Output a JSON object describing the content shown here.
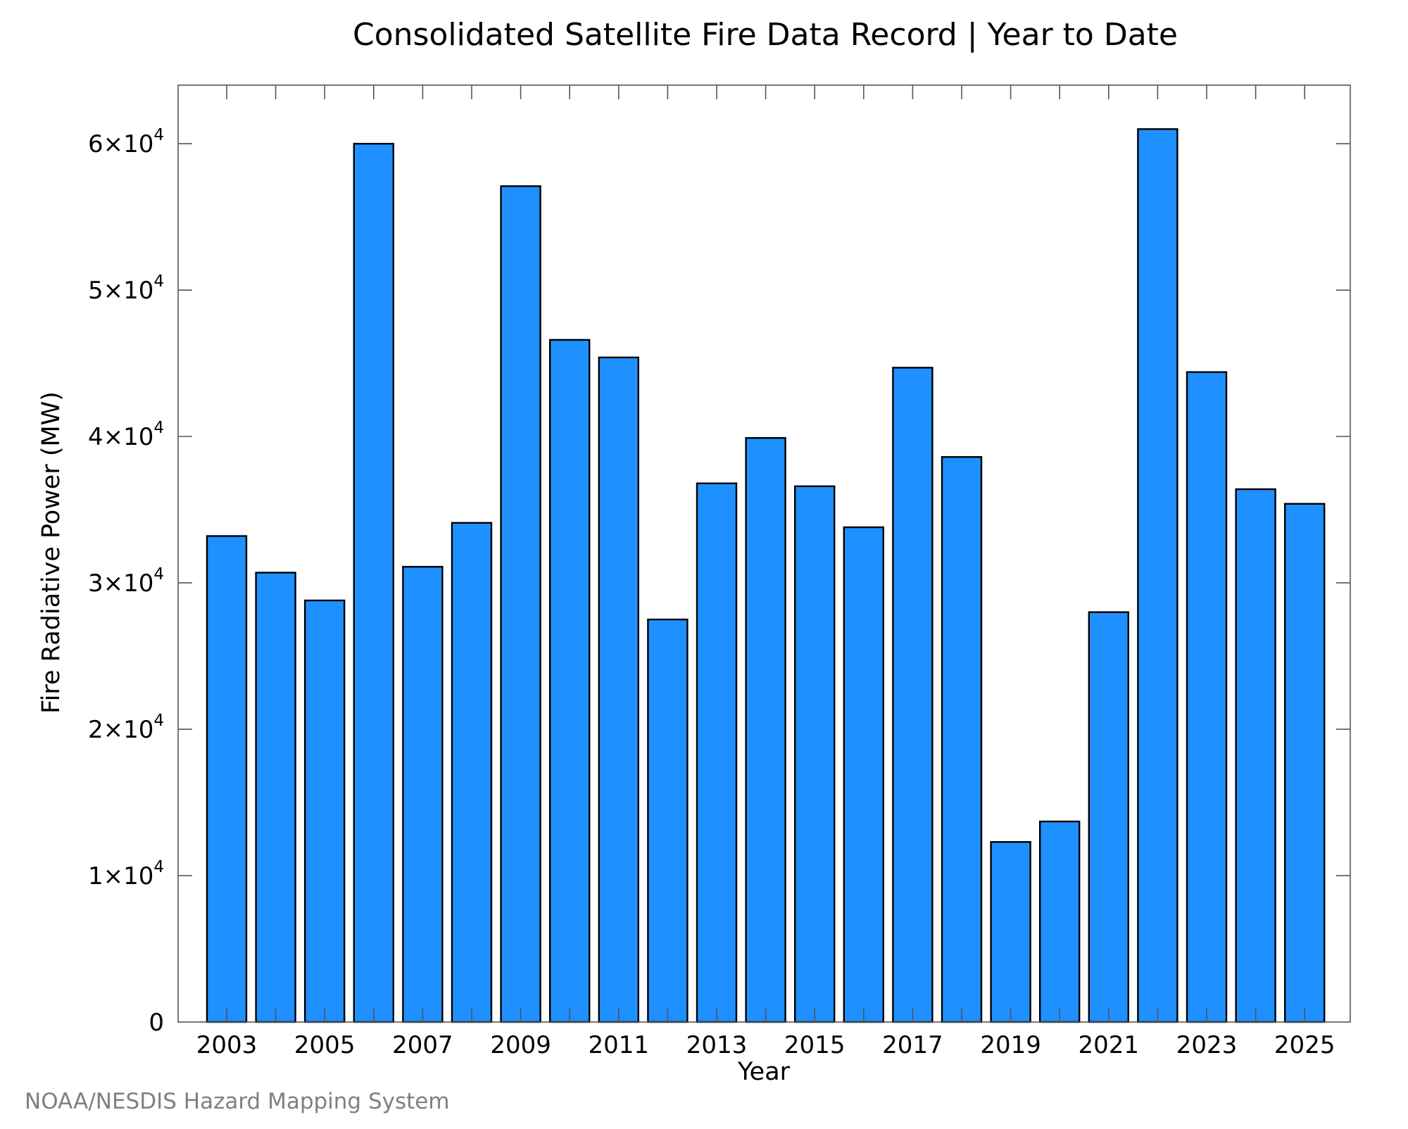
{
  "chart_data": {
    "type": "bar",
    "title": "Consolidated Satellite Fire Data Record | Year to Date",
    "xlabel": "Year",
    "ylabel": "Fire Radiative Power (MW)",
    "categories": [
      "2003",
      "2004",
      "2005",
      "2006",
      "2007",
      "2008",
      "2009",
      "2010",
      "2011",
      "2012",
      "2013",
      "2014",
      "2015",
      "2016",
      "2017",
      "2018",
      "2019",
      "2020",
      "2021",
      "2022",
      "2023",
      "2024",
      "2025"
    ],
    "values": [
      33200,
      30700,
      28800,
      60000,
      31100,
      34100,
      57100,
      46600,
      45400,
      27500,
      36800,
      39900,
      36600,
      33800,
      44700,
      38600,
      12300,
      13700,
      28000,
      61000,
      44400,
      36400,
      35400
    ],
    "xticks": [
      "2003",
      "2005",
      "2007",
      "2009",
      "2011",
      "2013",
      "2015",
      "2017",
      "2019",
      "2021",
      "2023",
      "2025"
    ],
    "ylim": [
      0,
      64000
    ],
    "yticks": [
      {
        "value": 0,
        "mantissa": "0",
        "exponent": ""
      },
      {
        "value": 10000,
        "mantissa": "1×10",
        "exponent": "4"
      },
      {
        "value": 20000,
        "mantissa": "2×10",
        "exponent": "4"
      },
      {
        "value": 30000,
        "mantissa": "3×10",
        "exponent": "4"
      },
      {
        "value": 40000,
        "mantissa": "4×10",
        "exponent": "4"
      },
      {
        "value": 50000,
        "mantissa": "5×10",
        "exponent": "4"
      },
      {
        "value": 60000,
        "mantissa": "6×10",
        "exponent": "4"
      }
    ],
    "bar_color": "#1E90FF",
    "bar_edge_color": "#000000",
    "grid": false,
    "legend": "none"
  },
  "credit": "NOAA/NESDIS Hazard Mapping System"
}
